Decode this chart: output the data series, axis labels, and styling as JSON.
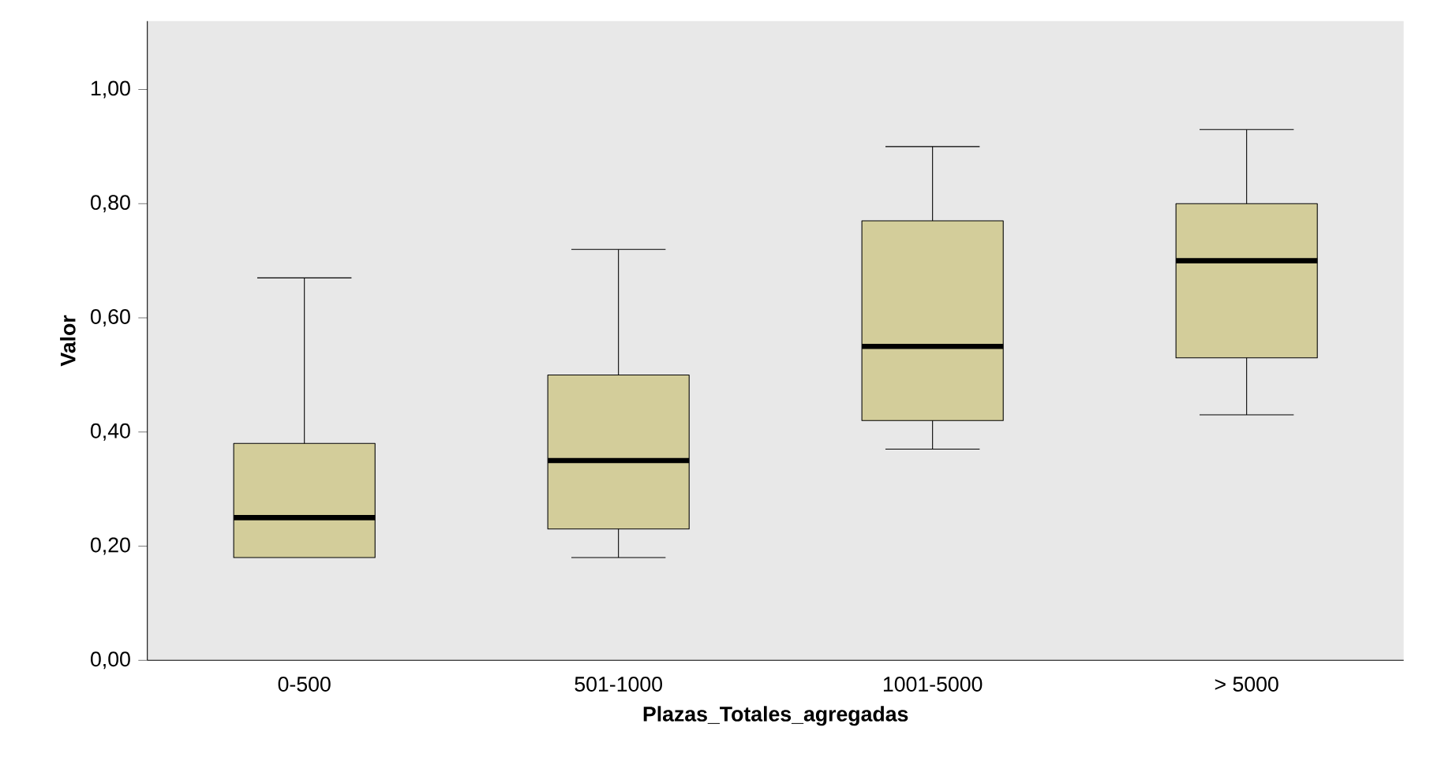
{
  "chart_data": {
    "type": "box",
    "xlabel": "Plazas_Totales_agregadas",
    "ylabel": "Valor",
    "categories": [
      "0-500",
      "501-1000",
      "1001-5000",
      "> 5000"
    ],
    "ylim": [
      0,
      1.12
    ],
    "yticks": [
      {
        "value": 0,
        "label": "0,00"
      },
      {
        "value": 0.2,
        "label": "0,20"
      },
      {
        "value": 0.4,
        "label": "0,40"
      },
      {
        "value": 0.6,
        "label": "0,60"
      },
      {
        "value": 0.8,
        "label": "0,80"
      },
      {
        "value": 1.0,
        "label": "1,00"
      }
    ],
    "series": [
      {
        "color": "#d3cd9a",
        "boxes": [
          {
            "low": 0.18,
            "q1": 0.18,
            "median": 0.25,
            "q3": 0.38,
            "high": 0.67
          },
          {
            "low": 0.18,
            "q1": 0.23,
            "median": 0.35,
            "q3": 0.5,
            "high": 0.72
          },
          {
            "low": 0.37,
            "q1": 0.42,
            "median": 0.55,
            "q3": 0.77,
            "high": 0.9
          },
          {
            "low": 0.43,
            "q1": 0.53,
            "median": 0.7,
            "q3": 0.8,
            "high": 0.93
          }
        ]
      }
    ],
    "grid": false
  }
}
